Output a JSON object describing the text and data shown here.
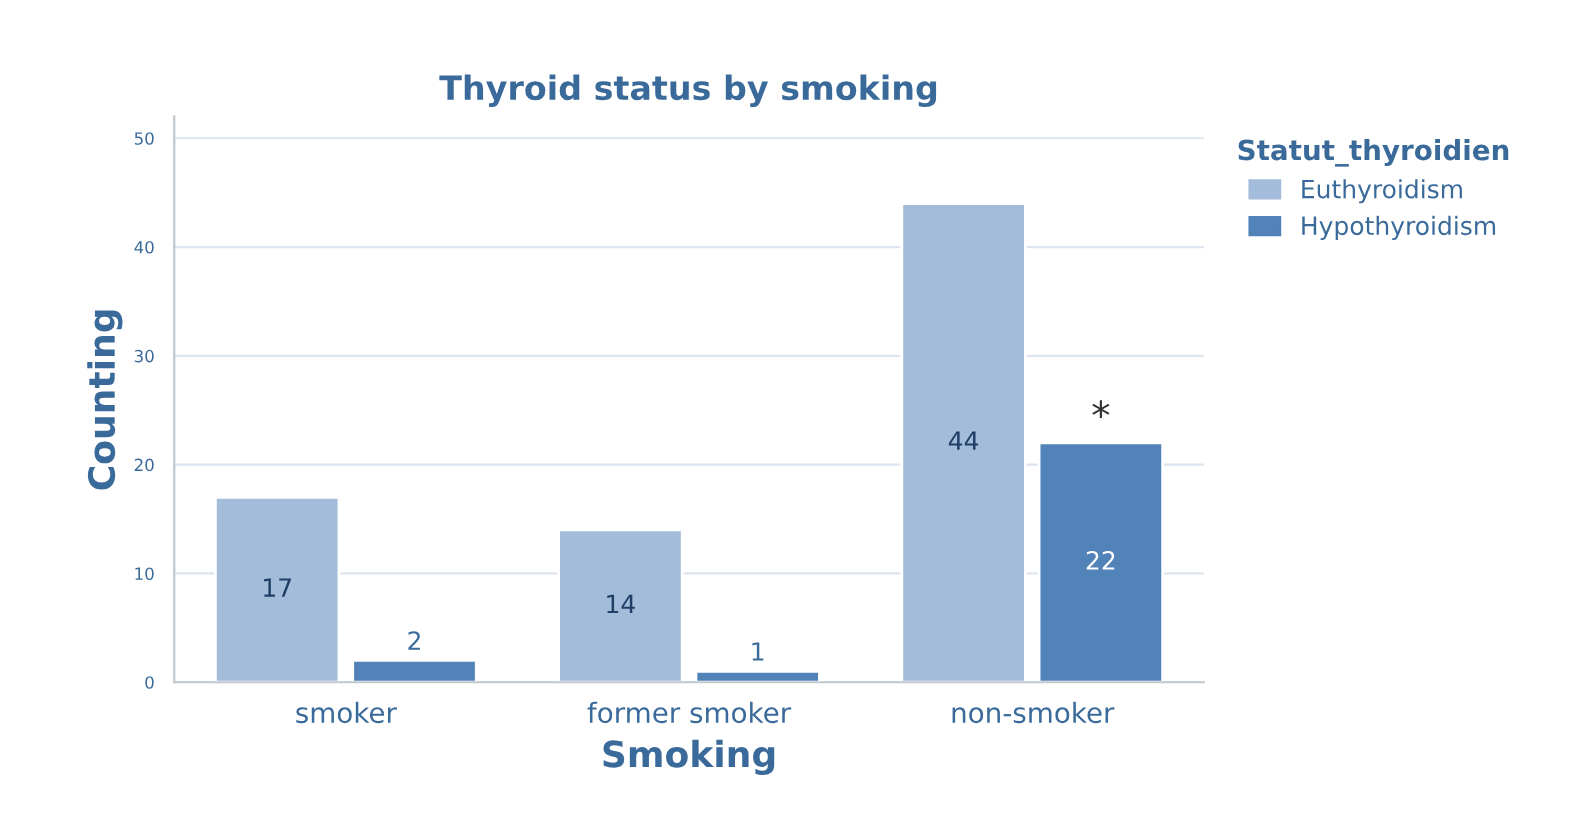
{
  "chart_data": {
    "type": "bar",
    "title": "Thyroid status by smoking",
    "xlabel": "Smoking",
    "ylabel": "Counting",
    "legend_title": "Statut_thyroidien",
    "categories": [
      "smoker",
      "former smoker",
      "non-smoker"
    ],
    "series": [
      {
        "name": "Euthyroidism",
        "color": "#a3bcd9",
        "values": [
          17,
          14,
          44
        ]
      },
      {
        "name": "Hypothyroidism",
        "color": "#5283b8",
        "values": [
          2,
          1,
          22
        ]
      }
    ],
    "ylim": [
      0,
      52
    ],
    "yticks": [
      0,
      10,
      20,
      30,
      40,
      50
    ],
    "grid": "y",
    "legend": "top right",
    "data_labels": true,
    "annotations": [
      {
        "text": "*",
        "x": "non-smoker",
        "y": 22
      }
    ]
  }
}
